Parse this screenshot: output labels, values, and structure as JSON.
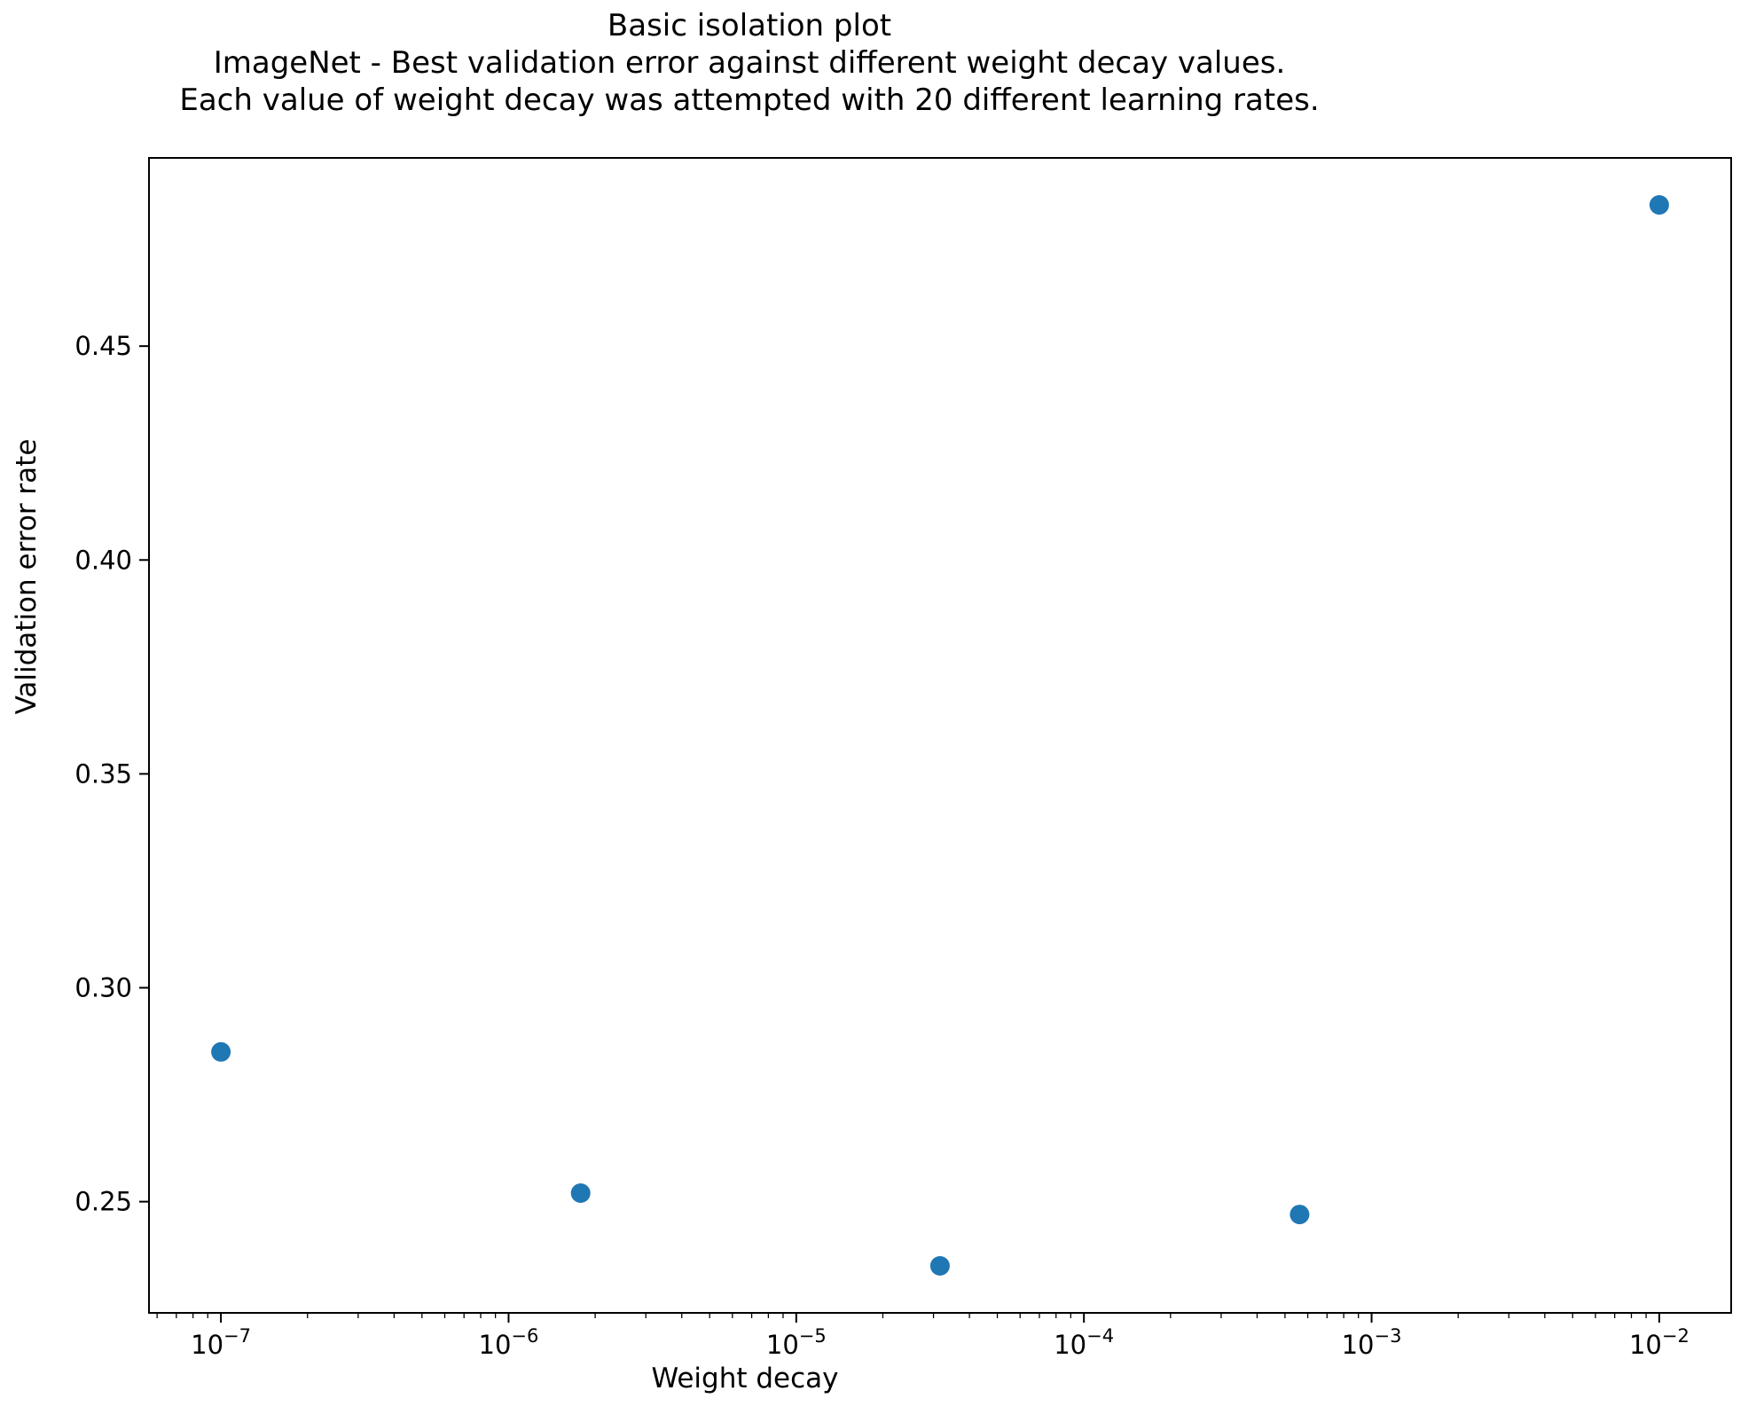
{
  "chart_data": {
    "type": "scatter",
    "title_lines": [
      "Basic isolation plot",
      "ImageNet - Best validation error against different weight decay values.",
      "Each value of weight decay was attempted with 20 different learning rates."
    ],
    "xlabel": "Weight decay",
    "ylabel": "Validation error rate",
    "x_scale": "log",
    "y_scale": "linear",
    "grid": false,
    "legend": false,
    "marker_color": "#1f77b4",
    "axis_color": "#000000",
    "x": [
      1e-07,
      1.78e-06,
      3.16e-05,
      0.000562,
      0.01
    ],
    "y": [
      0.285,
      0.252,
      0.235,
      0.247,
      0.483
    ],
    "xlim_log10": [
      -7.25,
      -1.75
    ],
    "ylim": [
      0.224,
      0.494
    ],
    "x_tick_exponents": [
      -7,
      -6,
      -5,
      -4,
      -3,
      -2
    ],
    "y_ticks": [
      0.25,
      0.3,
      0.35,
      0.4,
      0.45
    ]
  }
}
